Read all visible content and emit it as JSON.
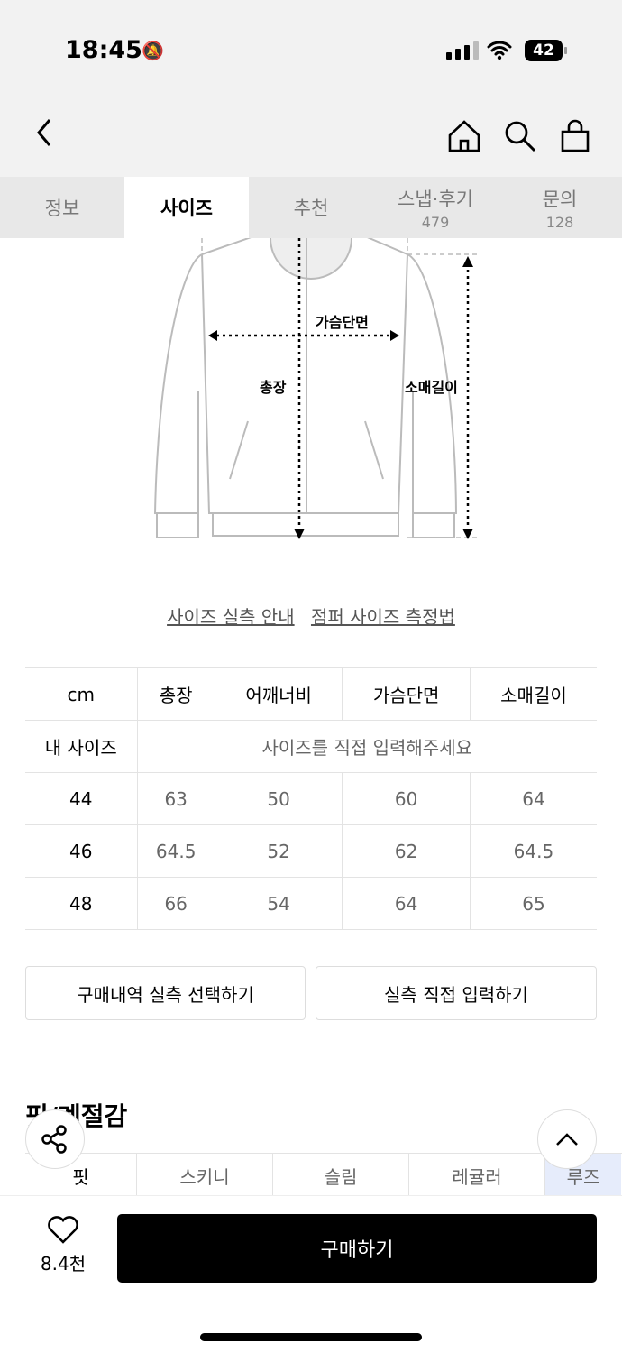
{
  "status": {
    "time": "18:45",
    "battery": "42"
  },
  "tabs": [
    {
      "label": "정보",
      "count": ""
    },
    {
      "label": "사이즈",
      "count": ""
    },
    {
      "label": "추천",
      "count": ""
    },
    {
      "label": "스냅·후기",
      "count": "479"
    },
    {
      "label": "문의",
      "count": "128"
    }
  ],
  "diagram": {
    "chest": "가슴단면",
    "length": "총장",
    "sleeve": "소매길이"
  },
  "links": {
    "guide": "사이즈 실측 안내",
    "method": "점퍼 사이즈 측정법"
  },
  "size_table": {
    "headers": [
      "cm",
      "총장",
      "어깨너비",
      "가슴단면",
      "소매길이"
    ],
    "my_size": {
      "label": "내 사이즈",
      "prompt": "사이즈를 직접 입력해주세요"
    },
    "rows": [
      [
        "44",
        "63",
        "50",
        "60",
        "64"
      ],
      [
        "46",
        "64.5",
        "52",
        "62",
        "64.5"
      ],
      [
        "48",
        "66",
        "54",
        "64",
        "65"
      ]
    ]
  },
  "buttons": {
    "purchase_history": "구매내역 실측 선택하기",
    "manual_input": "실측 직접 입력하기"
  },
  "fit_section": {
    "title": "핏/계절감",
    "row_label": "핏",
    "options": [
      "스키니",
      "슬림",
      "레귤러",
      "루즈"
    ],
    "selected": "루즈"
  },
  "bottom": {
    "likes": "8.4천",
    "buy": "구매하기"
  }
}
